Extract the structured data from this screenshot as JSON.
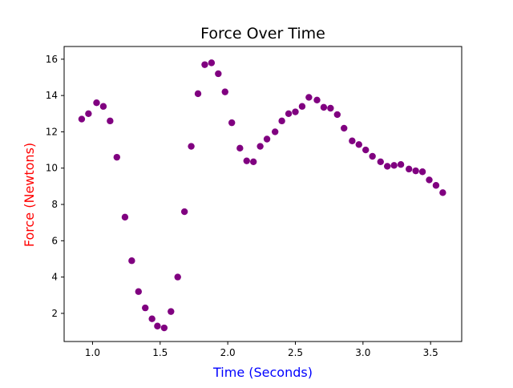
{
  "chart_data": {
    "type": "scatter",
    "title": "Force Over Time",
    "xlabel": "Time (Seconds)",
    "ylabel": "Force (Newtons)",
    "xlim": [
      0.79,
      3.73
    ],
    "ylim": [
      0.45,
      16.7
    ],
    "xticks": [
      1.0,
      1.5,
      2.0,
      2.5,
      3.0,
      3.5
    ],
    "xtick_labels": [
      "1.0",
      "1.5",
      "2.0",
      "2.5",
      "3.0",
      "3.5"
    ],
    "yticks": [
      2,
      4,
      6,
      8,
      10,
      12,
      14,
      16
    ],
    "ytick_labels": [
      "2",
      "4",
      "6",
      "8",
      "10",
      "12",
      "14",
      "16"
    ],
    "grid": false,
    "colors": {
      "marker": "#800080",
      "xlabel": "#0000ff",
      "ylabel": "#ff0000",
      "text": "#000000"
    },
    "series": [
      {
        "x": [
          0.92,
          0.97,
          1.03,
          1.08,
          1.13,
          1.18,
          1.24,
          1.29,
          1.34,
          1.39,
          1.44,
          1.48,
          1.53,
          1.58,
          1.63,
          1.68,
          1.73,
          1.78,
          1.83,
          1.88,
          1.93,
          1.98,
          2.03,
          2.09,
          2.14,
          2.19,
          2.24,
          2.29,
          2.35,
          2.4,
          2.45,
          2.5,
          2.55,
          2.6,
          2.66,
          2.71,
          2.76,
          2.81,
          2.86,
          2.92,
          2.97,
          3.02,
          3.07,
          3.13,
          3.18,
          3.23,
          3.28,
          3.34,
          3.39,
          3.44,
          3.49,
          3.54,
          3.59
        ],
        "y": [
          12.7,
          13.0,
          13.6,
          13.4,
          12.6,
          10.6,
          7.3,
          4.9,
          3.2,
          2.3,
          1.7,
          1.3,
          1.2,
          2.1,
          4.0,
          7.6,
          11.2,
          14.1,
          15.7,
          15.8,
          15.2,
          14.2,
          12.5,
          11.1,
          10.4,
          10.35,
          11.2,
          11.6,
          12.0,
          12.6,
          13.0,
          13.1,
          13.4,
          13.9,
          13.75,
          13.35,
          13.3,
          12.95,
          12.2,
          11.5,
          11.3,
          11.0,
          10.65,
          10.35,
          10.1,
          10.15,
          10.2,
          9.95,
          9.85,
          9.8,
          9.35,
          9.05,
          8.65
        ]
      }
    ]
  }
}
